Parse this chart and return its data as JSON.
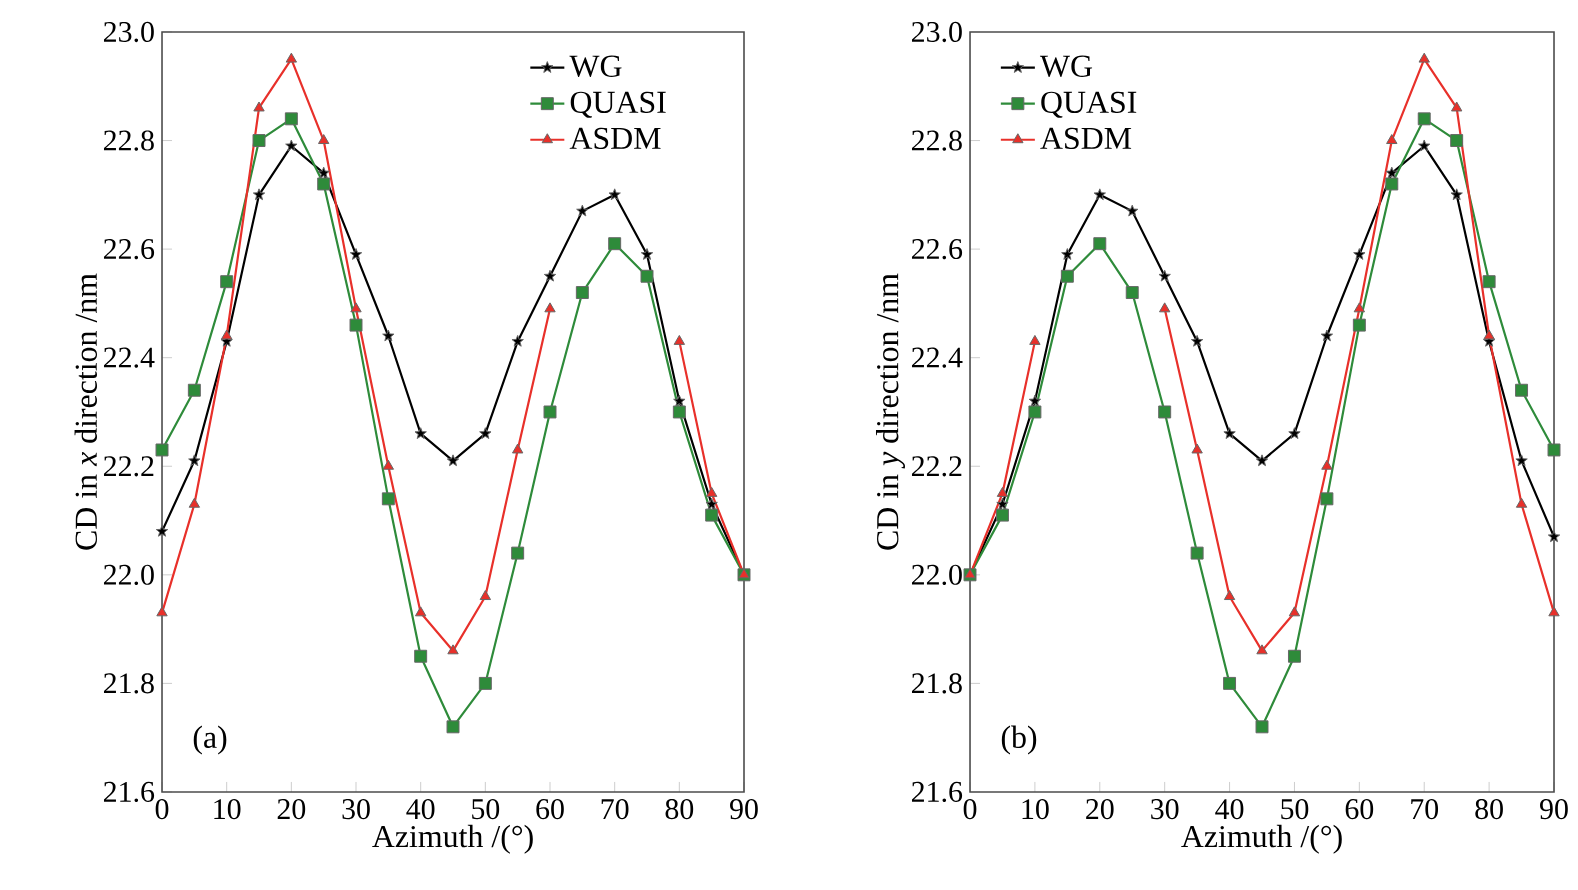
{
  "chart_data": [
    {
      "type": "line",
      "xlabel": "Azimuth /(°)",
      "ylabel": "CD in *x* direction /nm",
      "annotations": [
        "(a)"
      ],
      "x": [
        0,
        5,
        10,
        15,
        20,
        25,
        30,
        35,
        40,
        45,
        50,
        55,
        60,
        65,
        70,
        75,
        80,
        85,
        90
      ],
      "series": [
        {
          "name": "WG",
          "color": "#000000",
          "marker": "star",
          "values": [
            22.08,
            22.21,
            22.43,
            22.7,
            22.79,
            22.74,
            22.59,
            22.44,
            22.26,
            22.21,
            22.26,
            22.43,
            22.55,
            22.67,
            22.7,
            22.59,
            22.32,
            22.13,
            22.0
          ]
        },
        {
          "name": "QUASI",
          "color": "#2e8b3a",
          "marker": "square",
          "values": [
            22.23,
            22.34,
            22.54,
            22.8,
            22.84,
            22.72,
            22.46,
            22.14,
            21.85,
            21.72,
            21.8,
            22.04,
            22.3,
            22.52,
            22.61,
            22.55,
            22.3,
            22.11,
            22.0
          ]
        },
        {
          "name": "ASDM",
          "color": "#e8302a",
          "marker": "triangle",
          "values": [
            21.93,
            22.13,
            22.44,
            22.86,
            22.95,
            22.8,
            22.49,
            22.2,
            21.93,
            21.86,
            21.96,
            22.23,
            22.49,
            null,
            null,
            null,
            22.43,
            22.15,
            22.0
          ]
        }
      ],
      "xlim": [
        0,
        90
      ],
      "xticks": [
        0,
        10,
        20,
        30,
        40,
        50,
        60,
        70,
        80,
        90
      ],
      "ylim": [
        21.6,
        23.0
      ],
      "yticks": [
        {
          "value": 21.6,
          "label": "21.6"
        },
        {
          "value": 21.8,
          "label": "21.8"
        },
        {
          "value": 22.0,
          "label": "22.0"
        },
        {
          "value": 22.2,
          "label": "22.2"
        },
        {
          "value": 22.4,
          "label": "22.4"
        },
        {
          "value": 22.6,
          "label": "22.6"
        },
        {
          "value": 22.8,
          "label": "22.8"
        },
        {
          "value": 23.0,
          "label": "23.0"
        }
      ],
      "legend": "top right"
    },
    {
      "type": "line",
      "xlabel": "Azimuth /(°)",
      "ylabel": "CD in *y* direction /nm",
      "annotations": [
        "(b)"
      ],
      "x": [
        0,
        5,
        10,
        15,
        20,
        25,
        30,
        35,
        40,
        45,
        50,
        55,
        60,
        65,
        70,
        75,
        80,
        85,
        90
      ],
      "series": [
        {
          "name": "WG",
          "color": "#000000",
          "marker": "star",
          "values": [
            22.0,
            22.13,
            22.32,
            22.59,
            22.7,
            22.67,
            22.55,
            22.43,
            22.26,
            22.21,
            22.26,
            22.44,
            22.59,
            22.74,
            22.79,
            22.7,
            22.43,
            22.21,
            22.07
          ]
        },
        {
          "name": "QUASI",
          "color": "#2e8b3a",
          "marker": "square",
          "values": [
            22.0,
            22.11,
            22.3,
            22.55,
            22.61,
            22.52,
            22.3,
            22.04,
            21.8,
            21.72,
            21.85,
            22.14,
            22.46,
            22.72,
            22.84,
            22.8,
            22.54,
            22.34,
            22.23
          ]
        },
        {
          "name": "ASDM",
          "color": "#e8302a",
          "marker": "triangle",
          "values": [
            22.0,
            22.15,
            22.43,
            null,
            null,
            null,
            22.49,
            22.23,
            21.96,
            21.86,
            21.93,
            22.2,
            22.49,
            22.8,
            22.95,
            22.86,
            22.44,
            22.13,
            21.93
          ]
        }
      ],
      "xlim": [
        0,
        90
      ],
      "xticks": [
        0,
        10,
        20,
        30,
        40,
        50,
        60,
        70,
        80,
        90
      ],
      "ylim": [
        21.6,
        23.0
      ],
      "yticks": [
        {
          "value": 21.6,
          "label": "21.6"
        },
        {
          "value": 21.8,
          "label": "21.8"
        },
        {
          "value": 22.0,
          "label": "22.0"
        },
        {
          "value": 22.2,
          "label": "22.2"
        },
        {
          "value": 22.4,
          "label": "22.4"
        },
        {
          "value": 22.6,
          "label": "22.6"
        },
        {
          "value": 22.8,
          "label": "22.8"
        },
        {
          "value": 23.0,
          "label": "23.0"
        }
      ],
      "legend": "top left"
    }
  ]
}
